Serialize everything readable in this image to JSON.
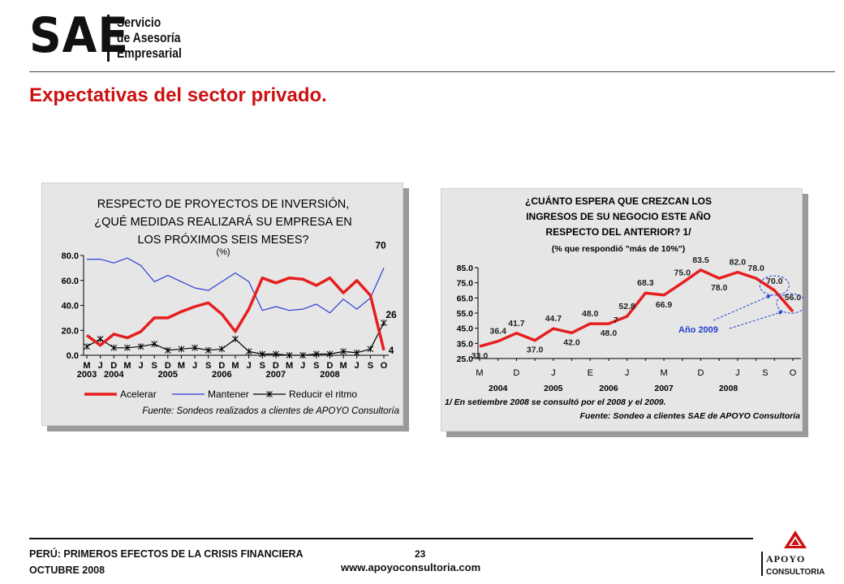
{
  "header": {
    "logo_main": "SAE",
    "logo_line1": "Servicio",
    "logo_line2": "de Asesoría",
    "logo_line3": "Empresarial"
  },
  "slide_title": "Expectativas del sector privado.",
  "colors": {
    "accent_red": "#cc1111",
    "series_red": "#e61e1e",
    "series_blue": "#2a3fd6",
    "series_black": "#000000",
    "annotation_blue": "#1f3fd0",
    "panel_bg": "#e6e6e6"
  },
  "chart_data": [
    {
      "type": "line",
      "title_lines": [
        "RESPECTO DE PROYECTOS DE INVERSIÓN,",
        "¿QUÉ MEDIDAS REALIZARÁ SU EMPRESA EN",
        "LOS PRÓXIMOS SEIS MESES?"
      ],
      "subtitle": "(%)",
      "x_month_labels": [
        "M",
        "J",
        "D",
        "M",
        "J",
        "S",
        "D",
        "M",
        "J",
        "S",
        "D",
        "M",
        "J",
        "S",
        "D",
        "M",
        "J",
        "S",
        "D",
        "M",
        "J",
        "S",
        "O"
      ],
      "x_year_labels": [
        {
          "label": "2003",
          "index": 0
        },
        {
          "label": "2004",
          "index": 2
        },
        {
          "label": "2005",
          "index": 6
        },
        {
          "label": "2006",
          "index": 10
        },
        {
          "label": "2007",
          "index": 14
        },
        {
          "label": "2008",
          "index": 18
        }
      ],
      "yticks": [
        "80.0",
        "60.0",
        "40.0",
        "20.0",
        "0.0"
      ],
      "ylim": [
        0,
        80
      ],
      "series": [
        {
          "name": "Acelerar",
          "color": "#e61e1e",
          "values": [
            16,
            8,
            17,
            14,
            19,
            30,
            30,
            35,
            39,
            42,
            33,
            19,
            37,
            62,
            58,
            62,
            61,
            56,
            62,
            50,
            60,
            48,
            4
          ]
        },
        {
          "name": "Mantener",
          "color": "#2a3fd6",
          "values": [
            77,
            77,
            74,
            78,
            72,
            59,
            64,
            59,
            54,
            52,
            59,
            66,
            59,
            36,
            39,
            36,
            37,
            41,
            34,
            45,
            37,
            46,
            70
          ]
        },
        {
          "name": "Reducir el ritmo",
          "color": "#000000",
          "values": [
            7,
            13,
            6,
            6,
            7,
            9,
            4,
            5,
            6,
            4,
            5,
            13,
            3,
            1,
            1,
            0,
            0,
            1,
            1,
            3,
            2,
            5,
            26
          ]
        }
      ],
      "end_labels": [
        "70",
        "26",
        "4"
      ],
      "source": "Fuente: Sondeos realizados a clientes de APOYO Consultoría"
    },
    {
      "type": "line",
      "title_lines": [
        "¿CUÁNTO ESPERA QUE CREZCAN LOS",
        "INGRESOS DE SU NEGOCIO ESTE AÑO",
        "RESPECTO DEL ANTERIOR? 1/"
      ],
      "subtitle": "(% que respondió \"más de 10%\")",
      "yticks": [
        "85.0",
        "75.0",
        "65.0",
        "55.0",
        "45.0",
        "35.0",
        "25.0"
      ],
      "ylim": [
        25,
        85
      ],
      "series": [
        {
          "name": "",
          "color": "#e61e1e",
          "values": [
            33.0,
            36.4,
            41.7,
            37.0,
            44.7,
            42.0,
            48.0,
            48.0,
            52.8,
            68.3,
            66.9,
            75.0,
            83.5,
            78.0,
            82.0,
            78.0,
            70.0,
            56.0
          ]
        }
      ],
      "data_labels": [
        "33.0",
        "36.4",
        "41.7",
        "37.0",
        "44.7",
        "42.0",
        "48.0",
        "48.0",
        "52.8",
        "68.3",
        "66.9",
        "75.0",
        "83.5",
        "78.0",
        "82.0",
        "78.0",
        "70.0",
        "56.0"
      ],
      "stray_label": "7",
      "x_month_labels": [
        "M",
        "D",
        "J",
        "E",
        "J",
        "M",
        "D",
        "J",
        "S",
        "O"
      ],
      "x_year_labels": [
        "2004",
        "2005",
        "2006",
        "2007",
        "2008"
      ],
      "annotation": "Año 2009",
      "footnote": "1/ En setiembre 2008 se consultó por el 2008 y el 2009.",
      "source": "Fuente: Sondeo a clientes SAE de APOYO Consultoría"
    }
  ],
  "footer": {
    "line1": "PERÚ: PRIMEROS EFECTOS DE LA CRISIS FINANCIERA",
    "line2": "OCTUBRE 2008",
    "page_number": "23",
    "url": "www.apoyoconsultoria.com",
    "apoyo_line1": "APOYO",
    "apoyo_line2": "CONSULTORIA"
  }
}
